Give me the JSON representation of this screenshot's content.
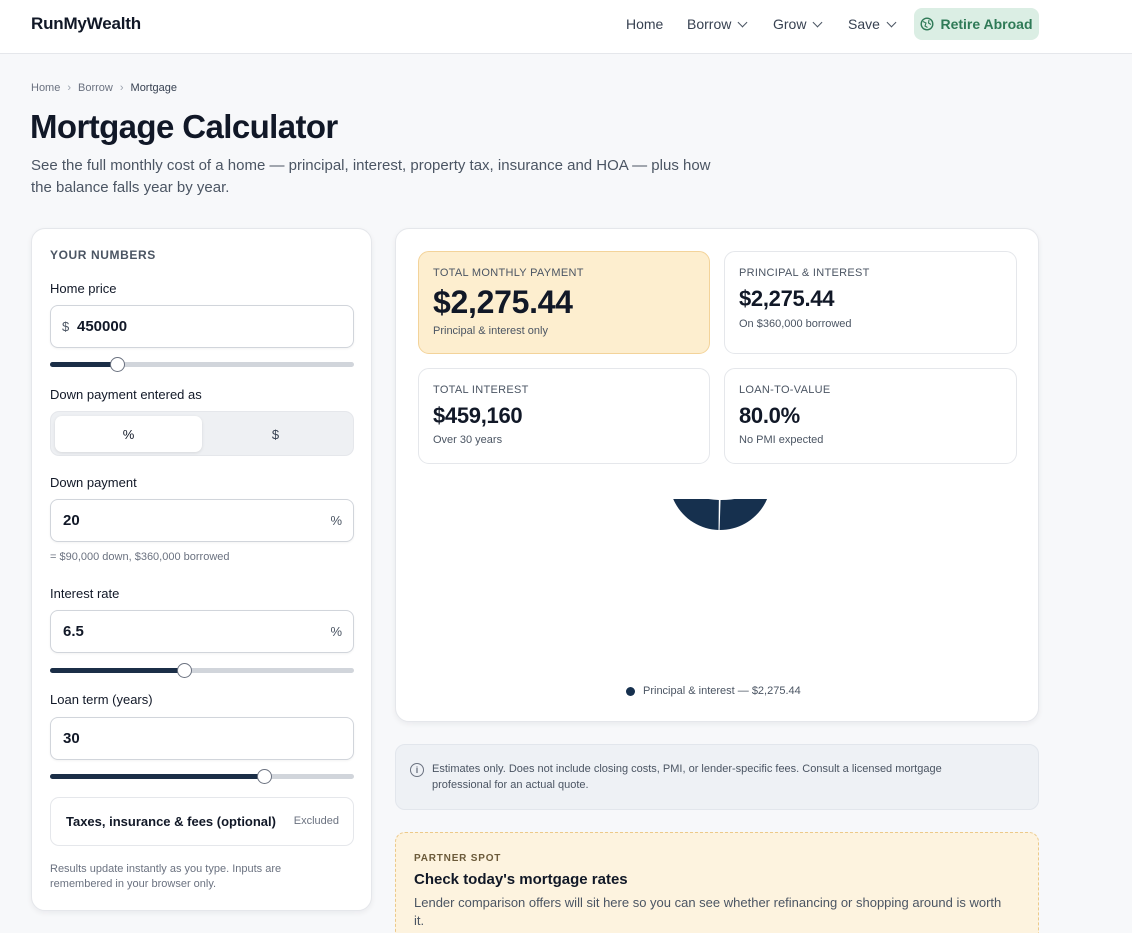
{
  "brand": {
    "name": "RunMyWealth"
  },
  "nav": {
    "home": "Home",
    "borrow": "Borrow",
    "grow": "Grow",
    "save": "Save",
    "cta": "Retire Abroad"
  },
  "breadcrumb": [
    "Home",
    "Borrow",
    "Mortgage"
  ],
  "page": {
    "title": "Mortgage Calculator",
    "subtitle": "See the full monthly cost of a home — principal, interest, property tax, insurance and HOA — plus how the balance falls year by year."
  },
  "inputs": {
    "section_label": "YOUR NUMBERS",
    "home_price": {
      "label": "Home price",
      "prefix": "$",
      "value": "450000",
      "slider_fraction": 0.22
    },
    "down_mode": {
      "label": "Down payment entered as",
      "options": [
        "%",
        "$"
      ],
      "selected": "%"
    },
    "down_payment": {
      "label": "Down payment",
      "value": "20",
      "suffix": "%",
      "hint": "= $90,000 down, $360,000 borrowed"
    },
    "interest_rate": {
      "label": "Interest rate",
      "value": "6.5",
      "suffix": "%",
      "slider_fraction": 0.44
    },
    "loan_term": {
      "label": "Loan term (years)",
      "value": "30",
      "slider_fraction": 0.705
    },
    "extras": {
      "label": "Taxes, insurance & fees (optional)",
      "status": "Excluded"
    },
    "footnote": "Results update instantly as you type. Inputs are remembered in your browser only."
  },
  "results": {
    "total_monthly": {
      "label": "TOTAL MONTHLY PAYMENT",
      "value": "$2,275.44",
      "note": "Principal & interest only"
    },
    "principal_interest": {
      "label": "PRINCIPAL & INTEREST",
      "value": "$2,275.44",
      "note": "On $360,000 borrowed"
    },
    "total_interest": {
      "label": "TOTAL INTEREST",
      "value": "$459,160",
      "note": "Over 30 years"
    },
    "ltv": {
      "label": "LOAN-TO-VALUE",
      "value": "80.0%",
      "note": "No PMI expected"
    }
  },
  "chart_data": {
    "type": "pie",
    "variant": "donut",
    "slices": [
      {
        "name": "Principal & interest",
        "value": 2275.44,
        "color": "#16304e"
      }
    ],
    "legend": [
      "Principal & interest — $2,275.44"
    ],
    "legend_position": "bottom"
  },
  "notice": {
    "text": "Estimates only. Does not include closing costs, PMI, or lender-specific fees. Consult a licensed mortgage professional for an actual quote."
  },
  "partner": {
    "tag": "PARTNER SPOT",
    "title": "Check today's mortgage rates",
    "body": "Lender comparison offers will sit here so you can see whether refinancing or shopping around is worth it."
  },
  "colors": {
    "navy": "#16304e",
    "accent_green": "#2f7a57",
    "cta_bg": "#dbeee4",
    "highlight_bg": "#fdeecf"
  }
}
